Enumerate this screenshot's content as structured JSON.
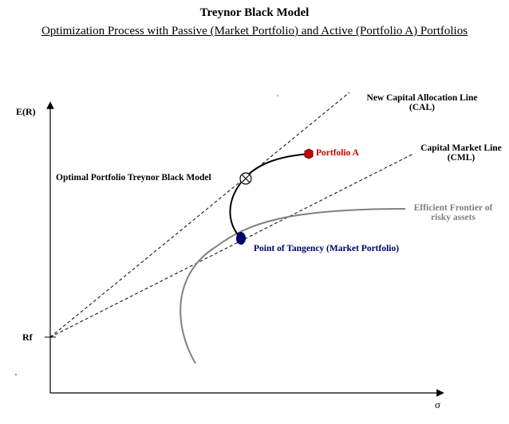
{
  "title": "Treynor Black Model",
  "subtitle": "Optimization Process with Passive (Market Portfolio) and Active (Portfolio A)  Portfolios",
  "axes": {
    "y_label": "E(R)",
    "x_label": "σ",
    "rf_label": "Rf"
  },
  "labels": {
    "new_cal_line1": "New Capital Allocation Line",
    "new_cal_line2": "(CAL)",
    "cml_line1": "Capital Market Line",
    "cml_line2": "(CML)",
    "portfolio_a": "Portfolio A",
    "optimal": "Optimal Portfolio Treynor Black Model",
    "tangency": "Point of Tangency (Market Portfolio)",
    "frontier_line1": "Efficient Frontier of",
    "frontier_line2": "risky assets"
  },
  "colors": {
    "portfolio_a": "#cc0000",
    "tangency": "#000066",
    "frontier": "#808080",
    "axis": "#000000"
  }
}
